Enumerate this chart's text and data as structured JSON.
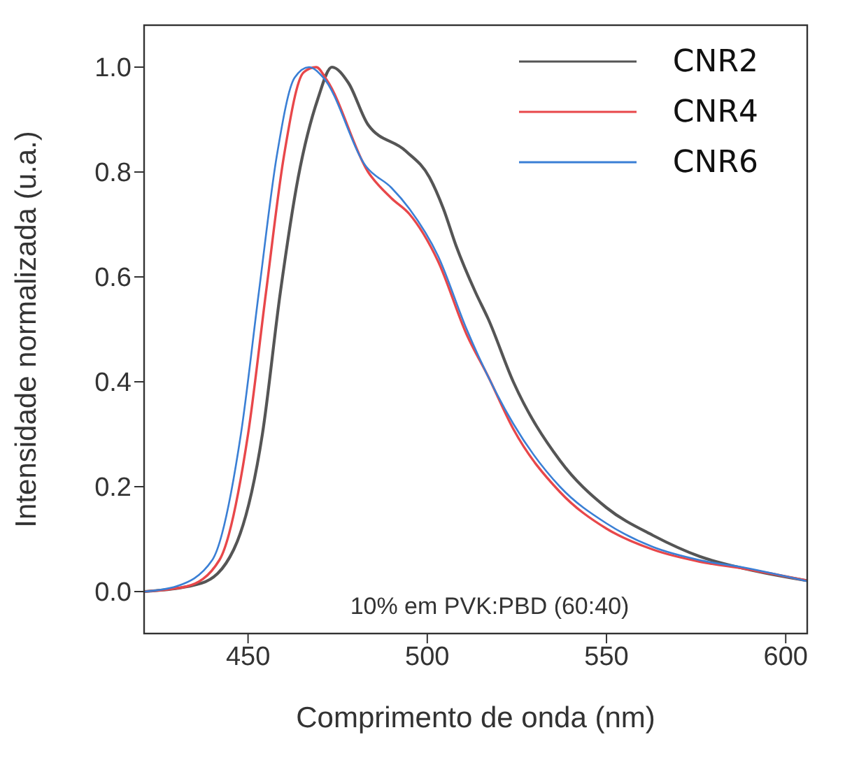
{
  "chart_data": {
    "type": "line",
    "xlabel": "Comprimento de onda (nm)",
    "ylabel": "Intensidade normalizada (u.a.)",
    "xlim": [
      421,
      606
    ],
    "xticks": [
      450,
      500,
      550,
      600
    ],
    "ylim": [
      -0.08,
      1.08
    ],
    "yticks": [
      {
        "value": 0,
        "label": "0.0"
      },
      {
        "value": 0.2,
        "label": "0.2"
      },
      {
        "value": 0.4,
        "label": "0.4"
      },
      {
        "value": 0.6,
        "label": "0.6"
      },
      {
        "value": 0.8,
        "label": "0.8"
      },
      {
        "value": 1,
        "label": "1.0"
      }
    ],
    "grid": false,
    "legend": "top right",
    "marker": "none",
    "line_style": "solid",
    "annotations": [
      "10% em PVK:PBD (60:40)"
    ],
    "series": [
      {
        "name": "CNR2",
        "color": "#555555",
        "x": [
          421,
          437,
          446,
          454,
          459,
          464,
          469.5,
          473.4,
          478,
          483.5,
          494,
          500.6,
          504.5,
          508,
          513.5,
          517,
          524,
          537,
          550,
          563,
          576,
          589,
          605.8
        ],
        "values": [
          0,
          0.016,
          0.08,
          0.3,
          0.57,
          0.79,
          0.94,
          1.0,
          0.97,
          0.89,
          0.84,
          0.79,
          0.73,
          0.66,
          0.57,
          0.52,
          0.4,
          0.25,
          0.16,
          0.107,
          0.067,
          0.043,
          0.021
        ]
      },
      {
        "name": "CNR4",
        "color": "#e8474a",
        "x": [
          421,
          433,
          442,
          450,
          455,
          460,
          465.5,
          469,
          472,
          483.5,
          490,
          495,
          503,
          511,
          517,
          524,
          537,
          550,
          563,
          576,
          589,
          605.8
        ],
        "values": [
          0,
          0.01,
          0.06,
          0.3,
          0.57,
          0.83,
          0.99,
          1.0,
          0.975,
          0.8,
          0.75,
          0.72,
          0.63,
          0.49,
          0.41,
          0.31,
          0.19,
          0.12,
          0.08,
          0.057,
          0.043,
          0.021
        ]
      },
      {
        "name": "CNR6",
        "color": "#3a7fd5",
        "x": [
          421,
          430,
          440,
          448,
          453,
          458,
          463,
          467,
          471,
          483,
          490,
          495,
          503,
          511,
          524,
          537,
          550,
          563,
          576,
          589,
          605.8
        ],
        "values": [
          0,
          0.01,
          0.06,
          0.3,
          0.57,
          0.83,
          0.98,
          1.0,
          0.98,
          0.81,
          0.77,
          0.73,
          0.64,
          0.5,
          0.32,
          0.2,
          0.13,
          0.085,
          0.06,
          0.045,
          0.02
        ]
      }
    ]
  }
}
